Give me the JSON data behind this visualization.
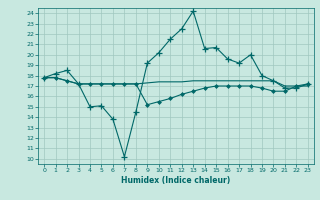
{
  "title": "",
  "xlabel": "Humidex (Indice chaleur)",
  "bg_color": "#c8e8e0",
  "grid_color": "#a0c8c0",
  "line_color": "#006868",
  "xlim": [
    -0.5,
    23.5
  ],
  "ylim": [
    9.5,
    24.5
  ],
  "yticks": [
    10,
    11,
    12,
    13,
    14,
    15,
    16,
    17,
    18,
    19,
    20,
    21,
    22,
    23,
    24
  ],
  "xticks": [
    0,
    1,
    2,
    3,
    4,
    5,
    6,
    7,
    8,
    9,
    10,
    11,
    12,
    13,
    14,
    15,
    16,
    17,
    18,
    19,
    20,
    21,
    22,
    23
  ],
  "line1_x": [
    0,
    1,
    2,
    3,
    4,
    5,
    6,
    7,
    8,
    9,
    10,
    11,
    12,
    13,
    14,
    15,
    16,
    17,
    18,
    19,
    20,
    21,
    22,
    23
  ],
  "line1_y": [
    17.8,
    18.2,
    18.5,
    17.2,
    15.0,
    15.1,
    13.8,
    10.2,
    14.5,
    19.2,
    20.2,
    21.5,
    22.5,
    24.2,
    20.6,
    20.7,
    19.6,
    19.2,
    20.0,
    18.0,
    17.5,
    16.8,
    16.8,
    17.2
  ],
  "line2_x": [
    0,
    1,
    2,
    3,
    4,
    5,
    6,
    7,
    8,
    9,
    10,
    11,
    12,
    13,
    14,
    15,
    16,
    17,
    18,
    19,
    20,
    21,
    22,
    23
  ],
  "line2_y": [
    17.8,
    17.8,
    17.5,
    17.2,
    17.2,
    17.2,
    17.2,
    17.2,
    17.2,
    17.3,
    17.4,
    17.4,
    17.4,
    17.5,
    17.5,
    17.5,
    17.5,
    17.5,
    17.5,
    17.5,
    17.5,
    17.0,
    17.0,
    17.0
  ],
  "line3_x": [
    0,
    1,
    2,
    3,
    4,
    5,
    6,
    7,
    8,
    9,
    10,
    11,
    12,
    13,
    14,
    15,
    16,
    17,
    18,
    19,
    20,
    21,
    22,
    23
  ],
  "line3_y": [
    17.8,
    17.8,
    17.5,
    17.2,
    17.2,
    17.2,
    17.2,
    17.2,
    17.2,
    15.2,
    15.5,
    15.8,
    16.2,
    16.5,
    16.8,
    17.0,
    17.0,
    17.0,
    17.0,
    16.8,
    16.5,
    16.5,
    17.0,
    17.2
  ]
}
